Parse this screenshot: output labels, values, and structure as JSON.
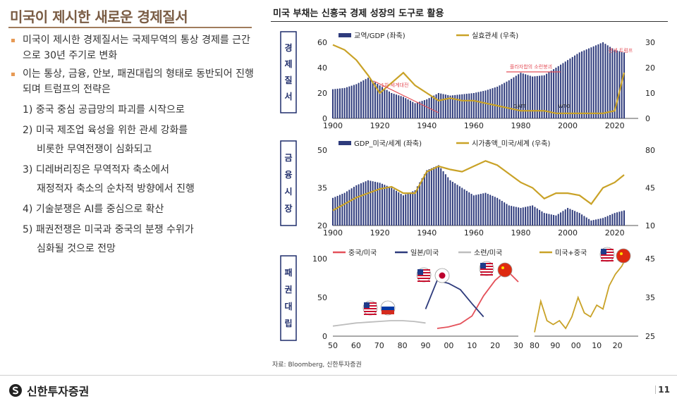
{
  "slide": {
    "title": "미국이 제시한 새로운 경제질서",
    "page": "11",
    "brand": "신한투자증권"
  },
  "bullets": [
    {
      "text": "미국이 제시한 경제질서는 국제무역의 통상 경제를 근간으로 30년 주기로 변화"
    },
    {
      "text": "이는 통상, 금융, 안보, 패권대립의 형태로 동반되어 진행되며 트럼프의 전략은"
    }
  ],
  "subs": [
    {
      "line1": "1) 중국 중심 공급망의 파괴를 시작으로",
      "line2": ""
    },
    {
      "line1": "2) 미국 제조업 육성을 위한 관세 강화를",
      "line2": "비롯한 무역전쟁이 심화되고"
    },
    {
      "line1": "3) 디레버리징은 무역적자 축소에서",
      "line2": "재정적자 축소의 순차적 방향에서 진행"
    },
    {
      "line1": "4) 기술분쟁은 AI를 중심으로 확산",
      "line2": ""
    },
    {
      "line1": "5) 패권전쟁은 미국과 중국의 분쟁 수위가",
      "line2": "심화될 것으로 전망"
    }
  ],
  "figure": {
    "title": "미국 부채는 신흥국 경제 성장의 도구로 활용",
    "source": "자료: Bloomberg, 신한투자증권"
  },
  "colors": {
    "navy": "#2e3b7c",
    "gold": "#c9a227",
    "red": "#e4515a",
    "grey": "#bdbdbd",
    "title_brown": "#7a5c44"
  },
  "chart_data": [
    {
      "type": "bar",
      "section_label": "경제질서",
      "annotations": [
        "1차 세계대전",
        "플라자합의 소련붕괴",
        "GATT",
        "WTO",
        "관세 트럼프"
      ],
      "x": [
        1900,
        1905,
        1910,
        1915,
        1920,
        1925,
        1930,
        1935,
        1940,
        1945,
        1950,
        1955,
        1960,
        1965,
        1970,
        1975,
        1980,
        1985,
        1990,
        1995,
        2000,
        2005,
        2010,
        2015,
        2020,
        2024
      ],
      "series": [
        {
          "name": "교역/GDP (좌축)",
          "kind": "bar",
          "axis": "left",
          "values": [
            23,
            24,
            27,
            32,
            26,
            20,
            17,
            12,
            15,
            20,
            18,
            19,
            20,
            22,
            25,
            30,
            36,
            33,
            34,
            40,
            46,
            52,
            56,
            60,
            54,
            52
          ]
        },
        {
          "name": "실효관세 (우축)",
          "kind": "line",
          "axis": "right",
          "values": [
            29,
            27,
            23,
            17,
            10,
            14,
            18,
            13,
            10,
            7,
            8,
            7,
            7,
            6,
            5,
            4,
            3,
            3,
            3,
            2,
            2,
            2,
            2,
            2,
            3,
            18
          ]
        }
      ],
      "xticks": [
        1900,
        1920,
        1940,
        1960,
        1980,
        2000,
        2020
      ],
      "ylim_left": [
        0,
        60
      ],
      "yticks_left": [
        0,
        20,
        40,
        60
      ],
      "ylim_right": [
        0,
        30
      ],
      "yticks_right": [
        0,
        10,
        20,
        30
      ]
    },
    {
      "type": "bar",
      "section_label": "금융시장",
      "x": [
        1900,
        1905,
        1910,
        1915,
        1920,
        1925,
        1930,
        1935,
        1940,
        1945,
        1950,
        1955,
        1960,
        1965,
        1970,
        1975,
        1980,
        1985,
        1990,
        1995,
        2000,
        2005,
        2010,
        2015,
        2020,
        2024
      ],
      "series": [
        {
          "name": "GDP_미국/세계 (좌축)",
          "kind": "bar",
          "axis": "left",
          "values": [
            31,
            33,
            36,
            38,
            37,
            35,
            32,
            34,
            42,
            44,
            38,
            35,
            32,
            33,
            31,
            28,
            27,
            28,
            25,
            24,
            27,
            25,
            22,
            23,
            25,
            26
          ]
        },
        {
          "name": "시가총액_미국/세계 (우축)",
          "kind": "line",
          "axis": "right",
          "values": [
            24,
            30,
            36,
            40,
            44,
            46,
            40,
            40,
            60,
            65,
            62,
            60,
            65,
            70,
            66,
            58,
            50,
            45,
            35,
            40,
            40,
            38,
            30,
            45,
            50,
            57
          ]
        }
      ],
      "xticks": [
        1900,
        1920,
        1940,
        1960,
        1980,
        2000,
        2020
      ],
      "ylim_left": [
        20,
        50
      ],
      "yticks_left": [
        20,
        35,
        50
      ],
      "ylim_right": [
        10,
        80
      ],
      "yticks_right": [
        10,
        45,
        80
      ]
    },
    {
      "type": "line",
      "section_label": "패권대립",
      "x": [
        50,
        55,
        60,
        65,
        70,
        75,
        80,
        85,
        90,
        95,
        100,
        105,
        110,
        115,
        120,
        125,
        130
      ],
      "series": [
        {
          "name": "중국/미국",
          "values": [
            null,
            null,
            null,
            null,
            null,
            null,
            null,
            null,
            null,
            10,
            12,
            16,
            26,
            52,
            72,
            85,
            70
          ]
        },
        {
          "name": "일본/미국",
          "values": [
            null,
            null,
            null,
            null,
            null,
            null,
            null,
            null,
            35,
            72,
            68,
            60,
            42,
            25,
            null,
            null,
            null
          ]
        },
        {
          "name": "소련/미국",
          "values": [
            13,
            15,
            17,
            18,
            19,
            20,
            20,
            19,
            17,
            null,
            null,
            null,
            null,
            null,
            null,
            null,
            null
          ]
        }
      ],
      "xticks": [
        "50",
        "60",
        "70",
        "80",
        "90",
        "00",
        "10",
        "20",
        "30"
      ],
      "ylim": [
        0,
        100
      ],
      "yticks": [
        0,
        50,
        100
      ]
    },
    {
      "type": "line",
      "x": [
        1980,
        1983,
        1986,
        1989,
        1992,
        1995,
        1998,
        2001,
        2004,
        2007,
        2010,
        2013,
        2016,
        2019,
        2022,
        2024
      ],
      "series": [
        {
          "name": "미국+중국",
          "values": [
            26,
            34,
            29,
            28,
            29,
            27,
            30,
            35,
            31,
            30,
            33,
            32,
            38,
            41,
            43,
            45
          ]
        }
      ],
      "xticks": [
        "80",
        "90",
        "00",
        "10",
        "20"
      ],
      "ylim": [
        25,
        45
      ],
      "yticks": [
        25,
        35,
        45
      ]
    }
  ]
}
